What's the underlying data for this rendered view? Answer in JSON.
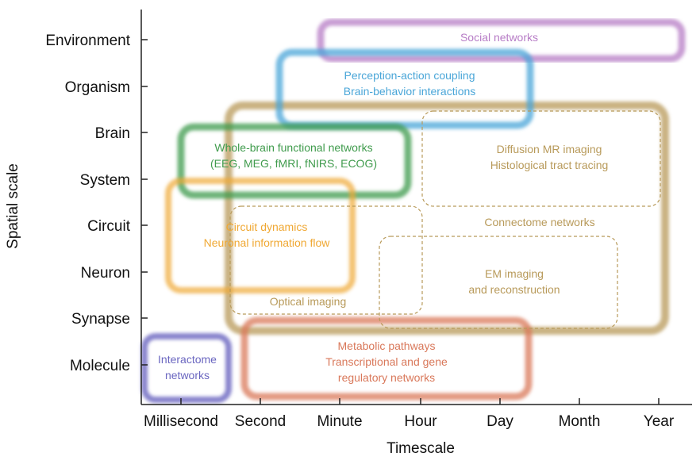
{
  "axes": {
    "x_title": "Timescale",
    "y_title": "Spatial scale",
    "x_ticks": [
      "Millisecond",
      "Second",
      "Minute",
      "Hour",
      "Day",
      "Month",
      "Year"
    ],
    "y_ticks": [
      "Environment",
      "Organism",
      "Brain",
      "System",
      "Circuit",
      "Neuron",
      "Synapse",
      "Molecule"
    ]
  },
  "regions": {
    "social": {
      "lines": [
        "Social networks"
      ],
      "color": "#b77cc6"
    },
    "perception": {
      "lines": [
        "Perception-action coupling",
        "Brain-behavior interactions"
      ],
      "color": "#4aa6d8"
    },
    "whole_brain": {
      "lines": [
        "Whole-brain functional networks",
        "(EEG, MEG, fMRI, fNIRS, ECOG)"
      ],
      "color": "#3f9b4c"
    },
    "connectome": {
      "lines": [
        "Connectome networks"
      ],
      "color": "#b89a5a"
    },
    "diffusion": {
      "lines": [
        "Diffusion MR imaging",
        "Histological tract tracing"
      ],
      "color": "#b89a5a"
    },
    "circuit": {
      "lines": [
        "Circuit dynamics",
        "Neuronal information flow"
      ],
      "color": "#f0a833"
    },
    "optical": {
      "lines": [
        "Optical imaging"
      ],
      "color": "#b89a5a"
    },
    "em": {
      "lines": [
        "EM imaging",
        "and reconstruction"
      ],
      "color": "#b89a5a"
    },
    "metabolic": {
      "lines": [
        "Metabolic pathways",
        "Transcriptional and gene",
        "regulatory networks"
      ],
      "color": "#d9785a"
    },
    "interactome": {
      "lines": [
        "Interactome",
        "networks"
      ],
      "color": "#6a66c0"
    }
  }
}
